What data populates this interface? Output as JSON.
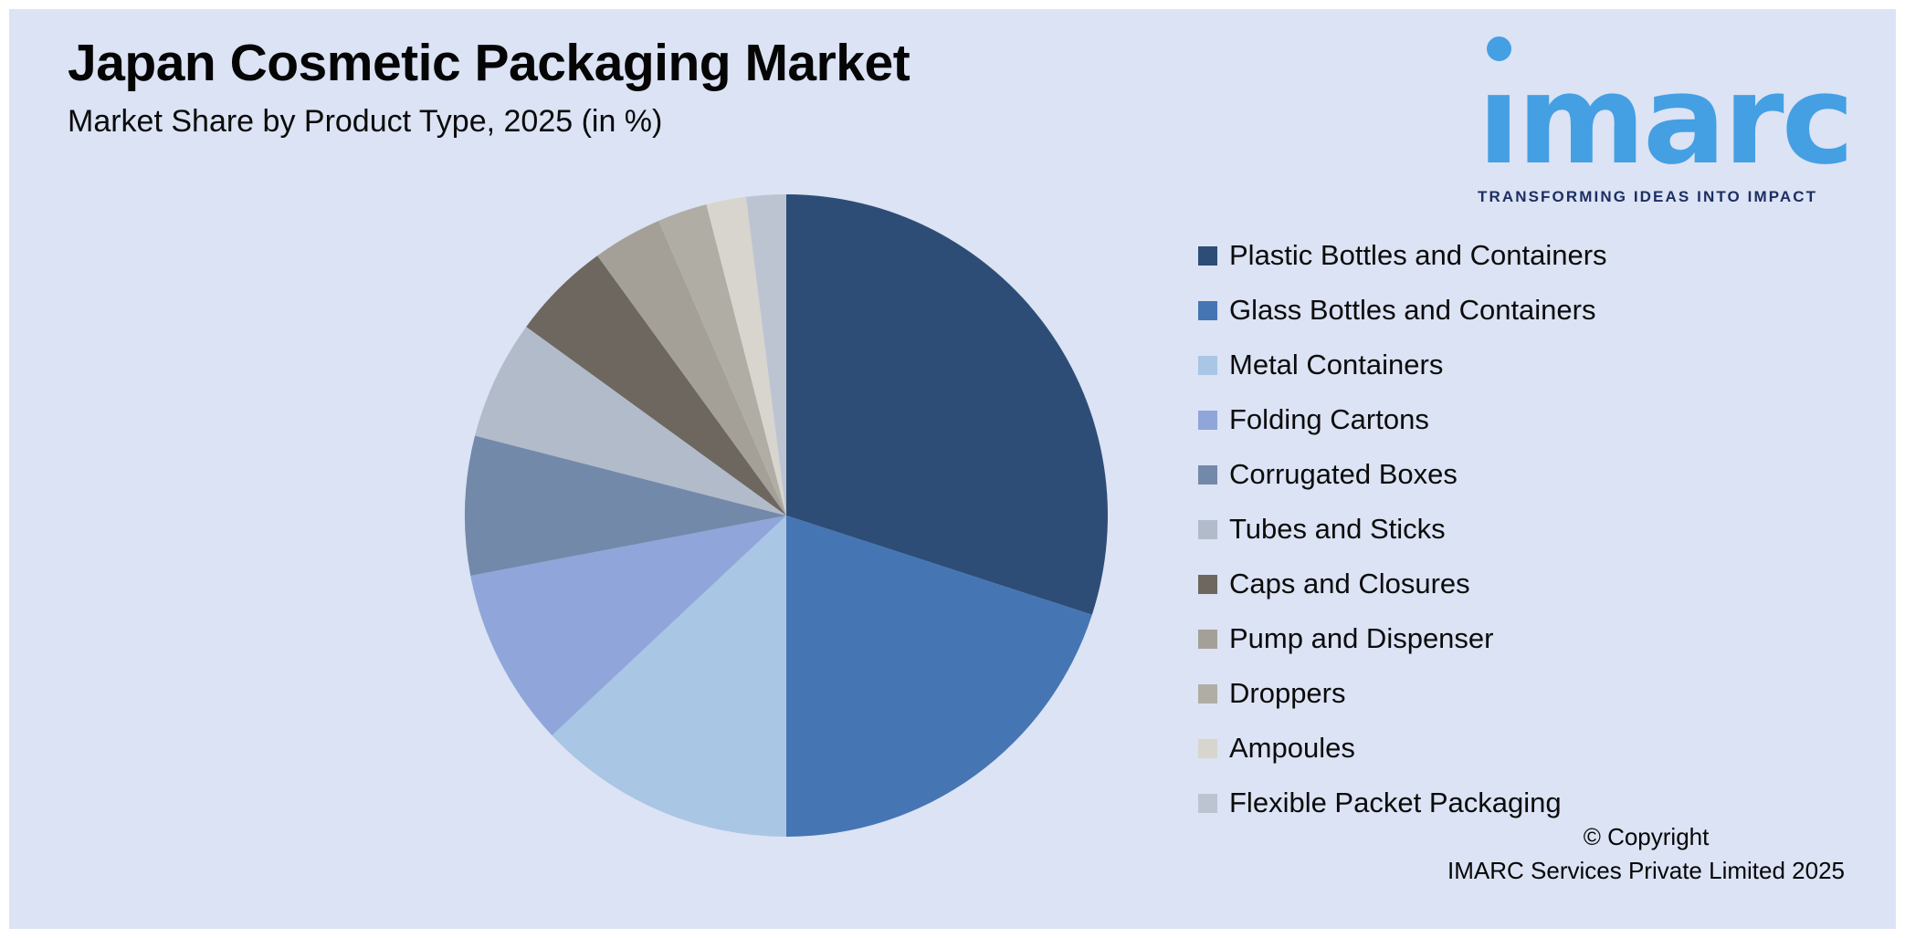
{
  "header": {
    "title": "Japan Cosmetic Packaging Market",
    "subtitle": "Market Share by Product Type, 2025 (in %)"
  },
  "logo": {
    "wordmark": "imarc",
    "tagline": "TRANSFORMING IDEAS INTO IMPACT",
    "brand_blue": "#459fe3",
    "tagline_color": "#1d2e63"
  },
  "panel": {
    "background_color": "#dbe3f4"
  },
  "footer": {
    "copyright_line1": "© Copyright",
    "copyright_line2": "IMARC Services Private Limited 2025"
  },
  "chart_data": {
    "type": "pie",
    "title": "Japan Cosmetic Packaging Market",
    "subtitle": "Market Share by Product Type, 2025 (in %)",
    "unit": "percent",
    "legend_position": "right",
    "direction": "clockwise",
    "start_angle": "12 o'clock",
    "labels": [
      "Plastic Bottles and Containers",
      "Glass Bottles and Containers",
      "Metal Containers",
      "Folding Cartons",
      "Corrugated Boxes",
      "Tubes and Sticks",
      "Caps and Closures",
      "Pump and Dispenser",
      "Droppers",
      "Ampoules",
      "Flexible Packet Packaging"
    ],
    "values": [
      30,
      20,
      13,
      9,
      7,
      6,
      5,
      3.5,
      2.5,
      2,
      2
    ],
    "colors": [
      "#2e4d76",
      "#4576b3",
      "#a9c6e4",
      "#90a6da",
      "#7389aa",
      "#b2bbca",
      "#6d675f",
      "#a4a097",
      "#b0ada5",
      "#d8d5cf",
      "#bdc4d1"
    ]
  }
}
